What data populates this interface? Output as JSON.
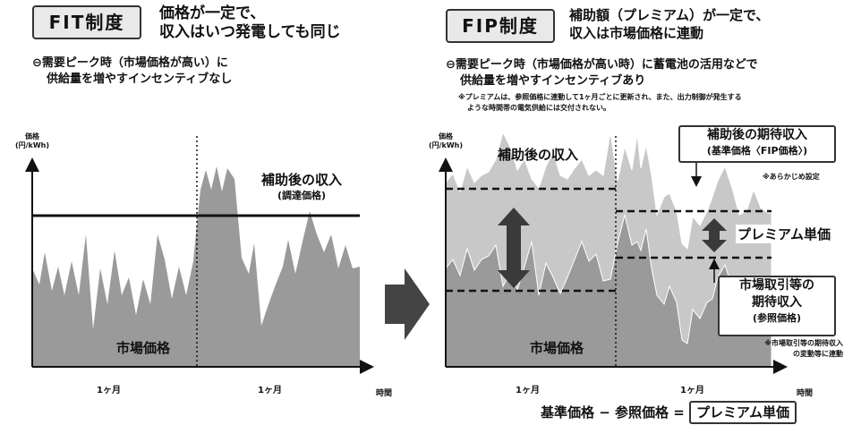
{
  "fit": {
    "title": "FIT制度",
    "headline_1": "価格が一定で、",
    "headline_2": "収入はいつ発電しても同じ",
    "bullet_1": "⊖需要ピーク時（市場価格が高い）に",
    "bullet_2": "供給量を増やすインセンティブなし",
    "y_axis_1": "価格",
    "y_axis_2": "(円/kWh)",
    "label_revenue": "補助後の収入",
    "label_revenue_sub": "(調達価格)",
    "label_market": "市場価格",
    "period_1": "1ヶ月",
    "period_2": "1ヶ月",
    "x_axis": "時間"
  },
  "fip": {
    "title": "FIP制度",
    "headline_1": "補助額（プレミアム）が一定で、",
    "headline_2": "収入は市場価格に連動",
    "bullet_1": "⊖需要ピーク時（市場価格が高い時）に蓄電池の活用などで",
    "bullet_2": "供給量を増やすインセンティブあり",
    "note_1": "※プレミアムは、参照価格に連動して1ヶ月ごとに更新され、また、出力制御が発生する",
    "note_2": "ような時間帯の電気供給には交付されない。",
    "y_axis_1": "価格",
    "y_axis_2": "(円/kWh)",
    "label_revenue": "補助後の収入",
    "label_market": "市場価格",
    "callout_expected_1": "補助後の期待収入",
    "callout_expected_2": "(基準価格〈FIP価格〉)",
    "note_preset": "※あらかじめ設定",
    "label_premium": "プレミアム単価",
    "callout_reference_1": "市場取引等の",
    "callout_reference_2": "期待収入",
    "callout_reference_3": "(参照価格)",
    "note_reference_1": "※市場取引等の期待収入",
    "note_reference_2": "の変動等に連動",
    "period_1": "1ヶ月",
    "period_2": "1ヶ月",
    "x_axis": "時間"
  },
  "formula": {
    "left": "基準価格 − 参照価格 =",
    "result": "プレミアム単価"
  },
  "colors": {
    "market_fill": "#9a9a9a",
    "revenue_fill": "#c8c8c8",
    "arrow": "#3a3a3a"
  }
}
